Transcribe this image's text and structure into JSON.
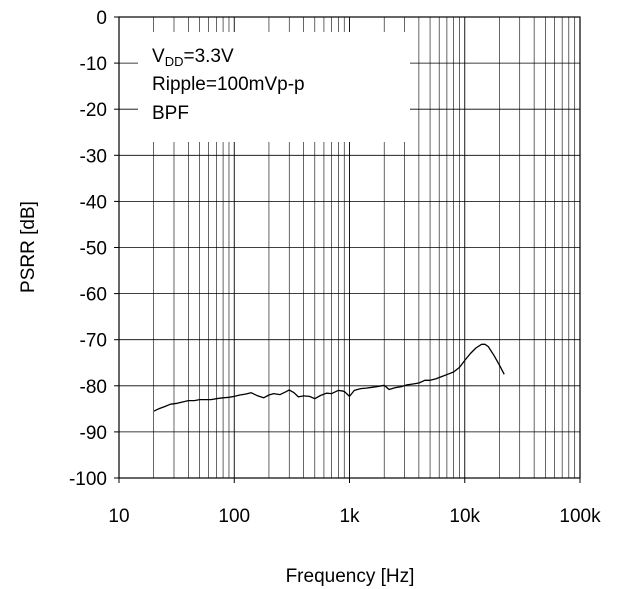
{
  "chart_data": {
    "type": "line",
    "title": "",
    "xlabel": "Frequency [Hz]",
    "ylabel": "PSRR [dB]",
    "x_scale": "log",
    "xlim": [
      10,
      100000
    ],
    "ylim": [
      -100,
      0
    ],
    "grid": true,
    "x_tick_values": [
      10,
      100,
      1000,
      10000,
      100000
    ],
    "x_tick_labels": [
      "10",
      "100",
      "1k",
      "10k",
      "100k"
    ],
    "y_tick_values": [
      0,
      -10,
      -20,
      -30,
      -40,
      -50,
      -60,
      -70,
      -80,
      -90,
      -100
    ],
    "y_tick_labels": [
      "0",
      "-10",
      "-20",
      "-30",
      "-40",
      "-50",
      "-60",
      "-70",
      "-80",
      "-90",
      "-100"
    ],
    "annotation": {
      "vdd_prefix": "V",
      "vdd_subscript": "DD",
      "vdd_value": "=3.3V",
      "ripple": "Ripple=100mVp-p",
      "filter": "BPF"
    },
    "series": [
      {
        "color": "#000000",
        "x": [
          20,
          22,
          25,
          28,
          32,
          36,
          40,
          45,
          50,
          56,
          63,
          70,
          80,
          90,
          100,
          112,
          125,
          140,
          160,
          180,
          200,
          220,
          250,
          280,
          300,
          330,
          360,
          400,
          450,
          500,
          560,
          630,
          700,
          800,
          900,
          1000,
          1100,
          1250,
          1400,
          1600,
          1800,
          2000,
          2200,
          2500,
          2800,
          3150,
          3550,
          4000,
          4500,
          5000,
          5600,
          6300,
          7100,
          8000,
          9000,
          10000,
          11200,
          12500,
          14000,
          15000,
          16000,
          18000,
          20000,
          22000
        ],
        "y": [
          -85.5,
          -85.0,
          -84.5,
          -84.0,
          -83.8,
          -83.5,
          -83.2,
          -83.2,
          -83.0,
          -83.0,
          -83.0,
          -82.8,
          -82.6,
          -82.5,
          -82.3,
          -82.0,
          -81.8,
          -81.5,
          -82.2,
          -82.6,
          -82.0,
          -81.7,
          -81.9,
          -81.3,
          -80.9,
          -81.5,
          -82.4,
          -82.2,
          -82.3,
          -82.8,
          -82.1,
          -81.6,
          -81.7,
          -81.0,
          -81.2,
          -82.3,
          -81.0,
          -80.6,
          -80.5,
          -80.3,
          -80.1,
          -79.9,
          -80.8,
          -80.4,
          -80.2,
          -79.8,
          -79.6,
          -79.4,
          -78.8,
          -78.8,
          -78.5,
          -78.0,
          -77.5,
          -77.0,
          -76.0,
          -74.5,
          -73.0,
          -71.8,
          -71.0,
          -71.0,
          -71.5,
          -73.5,
          -75.5,
          -77.5
        ]
      }
    ]
  }
}
